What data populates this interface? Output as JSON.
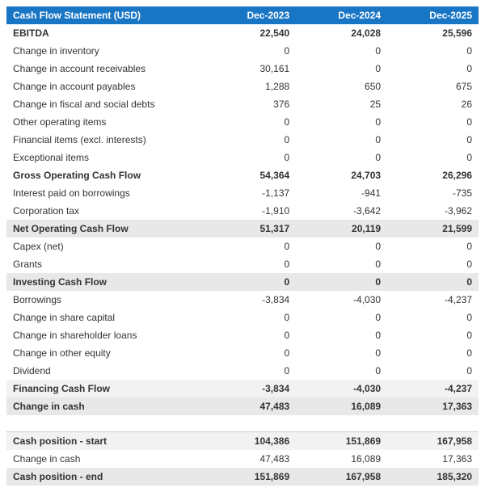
{
  "table": {
    "header": {
      "title": "Cash Flow Statement (USD)",
      "c1": "Dec-2023",
      "c2": "Dec-2024",
      "c3": "Dec-2025"
    },
    "rows": [
      {
        "label": "EBITDA",
        "c1": "22,540",
        "c2": "24,028",
        "c3": "25,596",
        "bold": true
      },
      {
        "label": "Change in inventory",
        "c1": "0",
        "c2": "0",
        "c3": "0"
      },
      {
        "label": "Change in account receivables",
        "c1": "30,161",
        "c2": "0",
        "c3": "0"
      },
      {
        "label": "Change in account payables",
        "c1": "1,288",
        "c2": "650",
        "c3": "675"
      },
      {
        "label": "Change in fiscal and social debts",
        "c1": "376",
        "c2": "25",
        "c3": "26"
      },
      {
        "label": "Other operating items",
        "c1": "0",
        "c2": "0",
        "c3": "0"
      },
      {
        "label": "Financial items (excl. interests)",
        "c1": "0",
        "c2": "0",
        "c3": "0"
      },
      {
        "label": "Exceptional items",
        "c1": "0",
        "c2": "0",
        "c3": "0"
      },
      {
        "label": "Gross Operating Cash Flow",
        "c1": "54,364",
        "c2": "24,703",
        "c3": "26,296",
        "bold": true
      },
      {
        "label": "Interest paid on borrowings",
        "c1": "-1,137",
        "c2": "-941",
        "c3": "-735"
      },
      {
        "label": "Corporation tax",
        "c1": "-1,910",
        "c2": "-3,642",
        "c3": "-3,962"
      },
      {
        "label": "Net Operating Cash Flow",
        "c1": "51,317",
        "c2": "20,119",
        "c3": "21,599",
        "bold": true,
        "shade": "shade"
      },
      {
        "label": "Capex (net)",
        "c1": "0",
        "c2": "0",
        "c3": "0"
      },
      {
        "label": "Grants",
        "c1": "0",
        "c2": "0",
        "c3": "0"
      },
      {
        "label": "Investing Cash Flow",
        "c1": "0",
        "c2": "0",
        "c3": "0",
        "bold": true,
        "shade": "shade"
      },
      {
        "label": "Borrowings",
        "c1": "-3,834",
        "c2": "-4,030",
        "c3": "-4,237"
      },
      {
        "label": "Change in share capital",
        "c1": "0",
        "c2": "0",
        "c3": "0"
      },
      {
        "label": "Change in shareholder loans",
        "c1": "0",
        "c2": "0",
        "c3": "0"
      },
      {
        "label": "Change in other equity",
        "c1": "0",
        "c2": "0",
        "c3": "0"
      },
      {
        "label": "Dividend",
        "c1": "0",
        "c2": "0",
        "c3": "0"
      },
      {
        "label": "Financing Cash Flow",
        "c1": "-3,834",
        "c2": "-4,030",
        "c3": "-4,237",
        "bold": true,
        "shade": "shade-light"
      },
      {
        "label": "Change in cash",
        "c1": "47,483",
        "c2": "16,089",
        "c3": "17,363",
        "bold": true,
        "shade": "shade"
      },
      {
        "label": "",
        "c1": "",
        "c2": "",
        "c3": "",
        "blank": true
      },
      {
        "label": "Cash position - start",
        "c1": "104,386",
        "c2": "151,869",
        "c3": "167,958",
        "bold": true,
        "shade": "shade-light",
        "sep": true
      },
      {
        "label": "Change in cash",
        "c1": "47,483",
        "c2": "16,089",
        "c3": "17,363"
      },
      {
        "label": "Cash position - end",
        "c1": "151,869",
        "c2": "167,958",
        "c3": "185,320",
        "bold": true,
        "shade": "shade"
      }
    ]
  }
}
